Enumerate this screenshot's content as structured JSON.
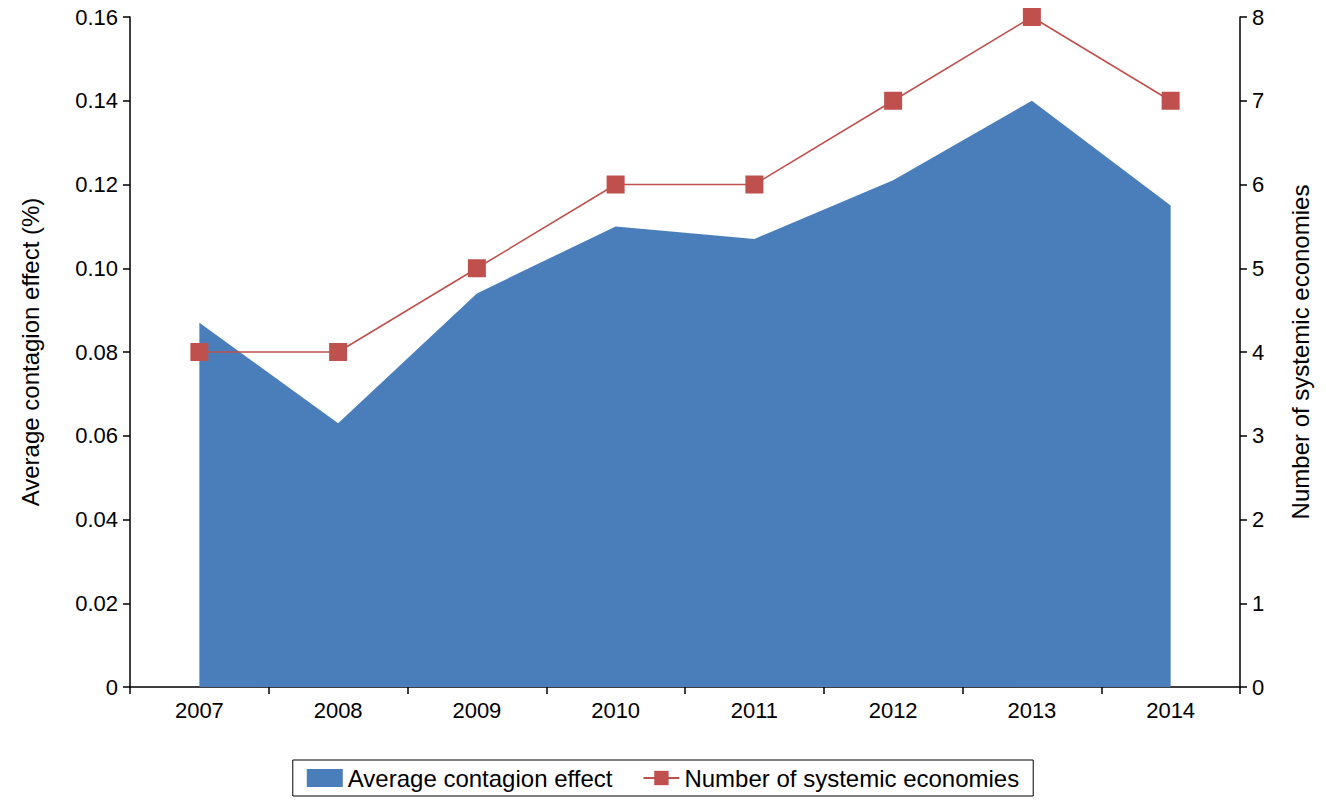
{
  "chart_data": {
    "type": "line",
    "categories": [
      "2007",
      "2008",
      "2009",
      "2010",
      "2011",
      "2012",
      "2013",
      "2014"
    ],
    "y_label": "Average contagion effect (%)",
    "y2_label": "Number of systemic economies",
    "series": [
      {
        "name": "Average contagion effect",
        "type": "area",
        "color": "#4a7ebb",
        "values": [
          0.087,
          0.063,
          0.094,
          0.11,
          0.107,
          0.121,
          0.14,
          0.115
        ]
      },
      {
        "name": "Number of systemic economies",
        "type": "line",
        "color": "#c0504d",
        "marker": "square",
        "axis": "y2",
        "values": [
          4,
          4,
          5,
          6,
          6,
          7,
          8,
          7
        ]
      }
    ],
    "ylim": [
      0,
      0.16
    ],
    "yticks": [
      0,
      0.02,
      0.04,
      0.06,
      0.08,
      {
        "value": 0.1,
        "label": "0.10"
      },
      0.12,
      0.14,
      0.16
    ],
    "y2lim": [
      0,
      8
    ],
    "y2ticks": [
      0,
      1,
      2,
      3,
      4,
      5,
      6,
      7,
      8
    ],
    "grid": false,
    "legend": "bottom"
  }
}
